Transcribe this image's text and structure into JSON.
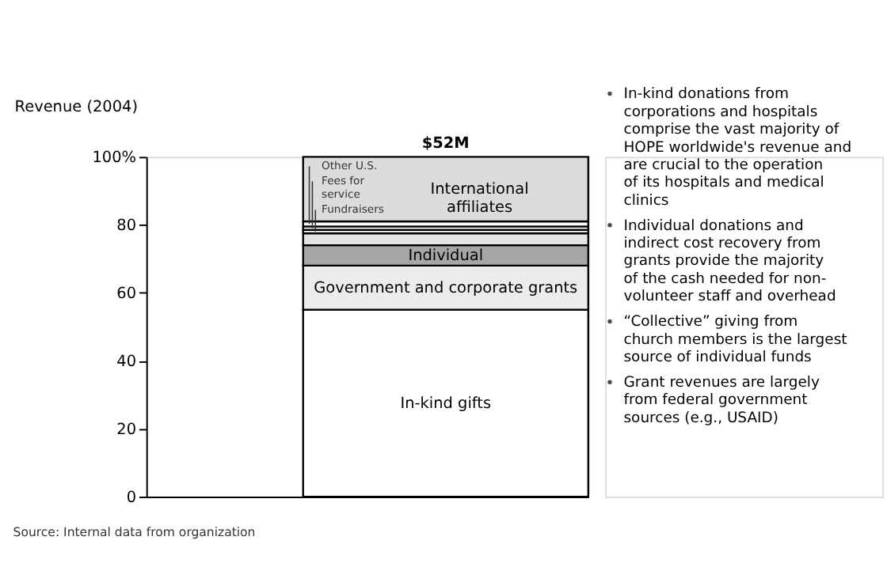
{
  "chart_data": {
    "type": "bar",
    "stacked": true,
    "categories": [
      null
    ],
    "ylabel": "Revenue (2004)",
    "series": [
      {
        "name": "In-kind gifts",
        "color": "#ffffff",
        "values": [
          55
        ]
      },
      {
        "name": "Government and corporate grants",
        "color": "#ececec",
        "values": [
          13
        ]
      },
      {
        "name": "Individual",
        "color": "#a6a6a6",
        "values": [
          6
        ]
      },
      {
        "color": "#e4e4e4",
        "values": [
          3.5
        ]
      },
      {
        "name": "Fundraisers",
        "color": "#ffffff",
        "values": [
          1
        ]
      },
      {
        "name": "Fees for service",
        "color": "#ffffff",
        "values": [
          1
        ]
      },
      {
        "name": "Other U.S.",
        "color": "#ffffff",
        "values": [
          1.5
        ]
      },
      {
        "name": "International affiliates",
        "color": "#dcdcdc",
        "values": [
          19
        ]
      }
    ],
    "ylim": [
      0,
      100
    ],
    "yticks": [
      0,
      20,
      40,
      60,
      80,
      {
        "value": 100,
        "label": "100%"
      }
    ],
    "grid": false,
    "legend": false,
    "annotations": [
      {
        "text": "$52M",
        "y": 100
      },
      "In-kind donations from corporations and hospitals comprise the vast majority of HOPE worldwide's revenue and are crucial to the operation of its hospitals and medical clinics",
      "Individual donations and indirect cost recovery from grants provide the majority of the cash needed for non-volunteer staff and overhead",
      "“Collective” giving from church members is the largest source of individual funds",
      "Grant revenues are largely from federal government sources (e.g., USAID)",
      "Source: Internal data from organization"
    ]
  }
}
